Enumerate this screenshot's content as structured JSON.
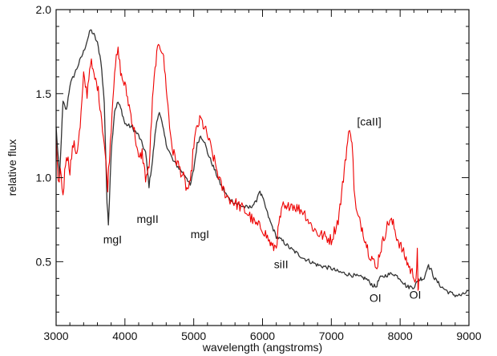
{
  "chart_data": {
    "type": "line",
    "title": "",
    "xlabel": "wavelength (angstroms)",
    "ylabel": "relative flux",
    "xlim": [
      3000,
      9000
    ],
    "ylim": [
      0.12,
      2.0
    ],
    "grid": false,
    "xticks": [
      {
        "value": 3000,
        "label": "3000"
      },
      {
        "value": 4000,
        "label": "4000"
      },
      {
        "value": 5000,
        "label": "5000"
      },
      {
        "value": 6000,
        "label": "6000"
      },
      {
        "value": 7000,
        "label": "7000"
      },
      {
        "value": 8000,
        "label": "8000"
      },
      {
        "value": 9000,
        "label": "9000"
      }
    ],
    "yticks": [
      {
        "value": 0.5,
        "label": "0.5"
      },
      {
        "value": 1.0,
        "label": "1.0"
      },
      {
        "value": 1.5,
        "label": "1.5"
      },
      {
        "value": 2.0,
        "label": "2.0"
      }
    ],
    "series": [
      {
        "color": "#333333",
        "x": [
          3000,
          3050,
          3100,
          3150,
          3200,
          3300,
          3400,
          3500,
          3550,
          3600,
          3650,
          3700,
          3740,
          3760,
          3800,
          3850,
          3900,
          3950,
          4000,
          4100,
          4200,
          4300,
          4350,
          4400,
          4450,
          4500,
          4550,
          4600,
          4700,
          4800,
          4900,
          4950,
          5000,
          5050,
          5100,
          5150,
          5200,
          5300,
          5400,
          5500,
          5600,
          5700,
          5800,
          5900,
          5950,
          6000,
          6100,
          6200,
          6300,
          6400,
          6500,
          6600,
          6700,
          6800,
          6900,
          7000,
          7100,
          7200,
          7300,
          7400,
          7500,
          7600,
          7650,
          7700,
          7800,
          7900,
          8000,
          8100,
          8200,
          8250,
          8300,
          8350,
          8400,
          8450,
          8500,
          8600,
          8700,
          8800,
          8900,
          9000
        ],
        "y": [
          1.3,
          1.0,
          1.45,
          1.4,
          1.55,
          1.65,
          1.75,
          1.88,
          1.85,
          1.8,
          1.7,
          1.45,
          0.85,
          0.72,
          1.15,
          1.4,
          1.45,
          1.4,
          1.32,
          1.3,
          1.25,
          1.15,
          0.95,
          1.1,
          1.3,
          1.4,
          1.3,
          1.2,
          1.1,
          1.05,
          1.0,
          0.95,
          1.05,
          1.2,
          1.25,
          1.22,
          1.15,
          1.05,
          0.95,
          0.88,
          0.85,
          0.83,
          0.82,
          0.85,
          0.92,
          0.88,
          0.75,
          0.65,
          0.62,
          0.58,
          0.55,
          0.52,
          0.5,
          0.48,
          0.47,
          0.46,
          0.44,
          0.43,
          0.42,
          0.41,
          0.4,
          0.36,
          0.35,
          0.4,
          0.42,
          0.43,
          0.4,
          0.35,
          0.35,
          0.38,
          0.4,
          0.4,
          0.48,
          0.45,
          0.4,
          0.35,
          0.32,
          0.3,
          0.3,
          0.33
        ]
      },
      {
        "color": "#ee0000",
        "x": [
          3000,
          3030,
          3060,
          3100,
          3150,
          3200,
          3250,
          3300,
          3350,
          3400,
          3450,
          3500,
          3550,
          3600,
          3650,
          3700,
          3750,
          3800,
          3850,
          3900,
          3950,
          4000,
          4050,
          4100,
          4150,
          4200,
          4250,
          4300,
          4350,
          4400,
          4450,
          4500,
          4550,
          4600,
          4650,
          4700,
          4750,
          4800,
          4850,
          4900,
          4950,
          5000,
          5050,
          5100,
          5150,
          5200,
          5300,
          5400,
          5500,
          5600,
          5700,
          5800,
          5900,
          6000,
          6100,
          6150,
          6200,
          6250,
          6300,
          6350,
          6400,
          6500,
          6600,
          6700,
          6800,
          6900,
          7000,
          7100,
          7150,
          7200,
          7250,
          7280,
          7300,
          7330,
          7360,
          7400,
          7450,
          7500,
          7550,
          7600,
          7650,
          7700,
          7750,
          7800,
          7850,
          7900,
          7950,
          8000,
          8050,
          8100,
          8150,
          8200,
          8230,
          8250,
          8260,
          8270
        ],
        "y": [
          1.2,
          0.95,
          1.05,
          0.9,
          1.15,
          1.05,
          1.2,
          1.15,
          1.3,
          1.6,
          1.5,
          1.7,
          1.6,
          1.55,
          1.4,
          1.2,
          0.95,
          1.3,
          1.65,
          1.75,
          1.6,
          1.55,
          1.45,
          1.35,
          1.25,
          1.1,
          1.15,
          1.0,
          1.05,
          1.45,
          1.7,
          1.8,
          1.75,
          1.55,
          1.3,
          1.15,
          1.1,
          1.05,
          1.0,
          0.93,
          0.95,
          1.2,
          1.3,
          1.35,
          1.3,
          1.25,
          1.1,
          0.95,
          0.88,
          0.85,
          0.82,
          0.78,
          0.72,
          0.7,
          0.62,
          0.58,
          0.6,
          0.75,
          0.83,
          0.8,
          0.85,
          0.82,
          0.8,
          0.72,
          0.67,
          0.65,
          0.63,
          0.75,
          0.9,
          1.1,
          1.25,
          1.28,
          1.22,
          0.95,
          0.8,
          0.75,
          0.7,
          0.62,
          0.55,
          0.52,
          0.45,
          0.55,
          0.62,
          0.7,
          0.75,
          0.72,
          0.65,
          0.6,
          0.55,
          0.5,
          0.45,
          0.42,
          0.4,
          0.55,
          0.3,
          0.4
        ]
      }
    ],
    "annotations": [
      {
        "text": "mgI",
        "x": 3820,
        "y": 0.61
      },
      {
        "text": "mgII",
        "x": 4330,
        "y": 0.73
      },
      {
        "text": "mgI",
        "x": 5090,
        "y": 0.64
      },
      {
        "text": "siII",
        "x": 6270,
        "y": 0.46
      },
      {
        "text": "[caII]",
        "x": 7550,
        "y": 1.31
      },
      {
        "text": "OI",
        "x": 7640,
        "y": 0.26
      },
      {
        "text": "OI",
        "x": 8220,
        "y": 0.28
      }
    ]
  }
}
